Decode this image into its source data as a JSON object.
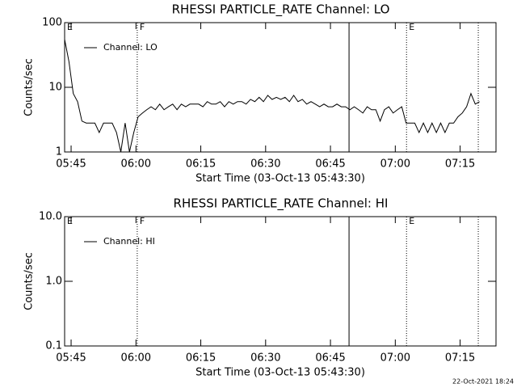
{
  "chart_data": [
    {
      "type": "line",
      "title": "RHESSI PARTICLE_RATE Channel: LO",
      "xlabel": "Start Time (03-Oct-13 05:43:30)",
      "ylabel": "Counts/sec",
      "ylog": true,
      "ylim": [
        1,
        100
      ],
      "yticks": [
        100,
        10,
        1
      ],
      "xlim": [
        0,
        99.8
      ],
      "xticks": [
        {
          "value": 1.5,
          "label": "05:45"
        },
        {
          "value": 16.5,
          "label": "06:00"
        },
        {
          "value": 31.5,
          "label": "06:15"
        },
        {
          "value": 46.5,
          "label": "06:30"
        },
        {
          "value": 61.5,
          "label": "06:45"
        },
        {
          "value": 76.5,
          "label": "07:00"
        },
        {
          "value": 91.5,
          "label": "07:15"
        }
      ],
      "flags": [
        {
          "x": 0,
          "label": "E"
        },
        {
          "x": 16.8,
          "label": "F",
          "line": "dotted"
        },
        {
          "x": 65.8,
          "line": "solid"
        },
        {
          "x": 79.1,
          "label": "E",
          "line": "dotted"
        },
        {
          "x": 95.7,
          "line": "dotted"
        }
      ],
      "x": [
        0,
        1,
        2,
        3,
        4,
        5,
        6,
        7,
        8,
        9,
        10,
        11,
        12,
        13,
        14,
        15,
        16,
        17,
        18,
        19,
        20,
        21,
        22,
        23,
        24,
        25,
        26,
        27,
        28,
        29,
        30,
        31,
        32,
        33,
        34,
        35,
        36,
        37,
        38,
        39,
        40,
        41,
        42,
        43,
        44,
        45,
        46,
        47,
        48,
        49,
        50,
        51,
        52,
        53,
        54,
        55,
        56,
        57,
        58,
        59,
        60,
        61,
        62,
        63,
        64,
        65,
        66,
        67,
        68,
        69,
        70,
        71,
        72,
        73,
        74,
        75,
        76,
        77,
        78,
        79,
        80,
        81,
        82,
        83,
        84,
        85,
        86,
        87,
        88,
        89,
        90,
        91,
        92,
        93,
        94,
        95,
        96
      ],
      "series": [
        {
          "name": "Channel: LO",
          "color": "#000000",
          "values": [
            55,
            25,
            8,
            6,
            3,
            2.8,
            2.8,
            2.8,
            2,
            2.8,
            2.8,
            2.8,
            2,
            1,
            2.8,
            1,
            2,
            3.5,
            4,
            4.5,
            5,
            4.5,
            5.5,
            4.5,
            5,
            5.5,
            4.5,
            5.5,
            5,
            5.5,
            5.5,
            5.5,
            5,
            6,
            5.5,
            5.5,
            6,
            5,
            6,
            5.5,
            6,
            6,
            5.5,
            6.5,
            6,
            7,
            6,
            7.5,
            6.5,
            7,
            6.5,
            7,
            6,
            7.5,
            6,
            6.5,
            5.5,
            6,
            5.5,
            5,
            5.5,
            5,
            5,
            5.5,
            5,
            5,
            4.5,
            5,
            4.5,
            4,
            5,
            4.5,
            4.5,
            3,
            4.5,
            5,
            4,
            4.5,
            5,
            2.8,
            2.8,
            2.8,
            2,
            2.8,
            2,
            2.8,
            2,
            2.8,
            2,
            2.8,
            2.8,
            3.5,
            4,
            5,
            8,
            5.5,
            6
          ]
        }
      ]
    },
    {
      "type": "line",
      "title": "RHESSI PARTICLE_RATE Channel: HI",
      "xlabel": "Start Time (03-Oct-13 05:43:30)",
      "ylabel": "Counts/sec",
      "ylog": true,
      "ylim": [
        0.1,
        10
      ],
      "yticks": [
        {
          "value": 10,
          "label": "10.0"
        },
        {
          "value": 1,
          "label": "1.0"
        },
        0.1
      ],
      "xlim": [
        0,
        99.8
      ],
      "xticks": [
        {
          "value": 1.5,
          "label": "05:45"
        },
        {
          "value": 16.5,
          "label": "06:00"
        },
        {
          "value": 31.5,
          "label": "06:15"
        },
        {
          "value": 46.5,
          "label": "06:30"
        },
        {
          "value": 61.5,
          "label": "06:45"
        },
        {
          "value": 76.5,
          "label": "07:00"
        },
        {
          "value": 91.5,
          "label": "07:15"
        }
      ],
      "flags": [
        {
          "x": 0,
          "label": "E"
        },
        {
          "x": 16.8,
          "label": "F",
          "line": "dotted"
        },
        {
          "x": 65.8,
          "line": "solid"
        },
        {
          "x": 79.1,
          "label": "E",
          "line": "dotted"
        },
        {
          "x": 95.7,
          "line": "dotted"
        }
      ],
      "x": [],
      "series": [
        {
          "name": "Channel: HI",
          "color": "#000000",
          "values": []
        }
      ]
    }
  ],
  "timestamp": "22-Oct-2021 18:24"
}
